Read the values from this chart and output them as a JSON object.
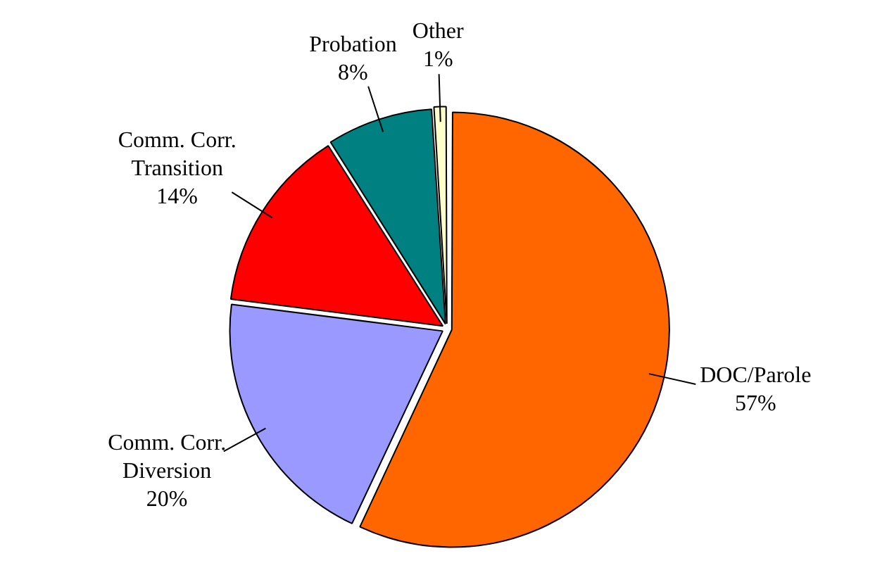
{
  "chart_data": {
    "type": "pie",
    "categories": [
      "DOC/Parole",
      "Comm. Corr. Diversion",
      "Comm. Corr. Transition",
      "Probation",
      "Other"
    ],
    "values": [
      57,
      20,
      14,
      8,
      1
    ],
    "value_labels": [
      "57%",
      "20%",
      "14%",
      "8%",
      "1%"
    ],
    "colors": [
      "#ff6600",
      "#9999ff",
      "#ff0000",
      "#008080",
      "#ffffcc"
    ],
    "legend": false
  }
}
